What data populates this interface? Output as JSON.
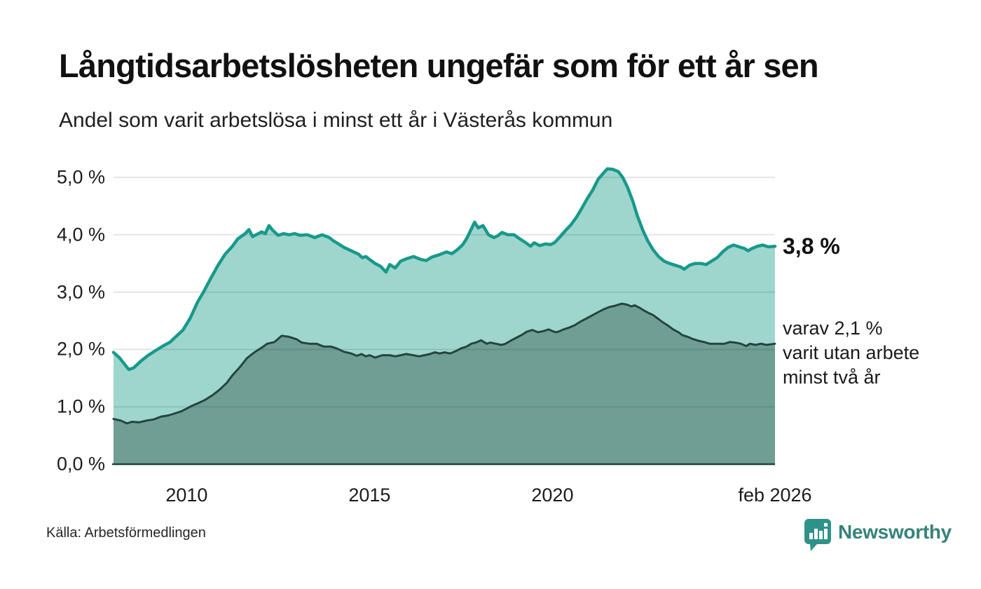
{
  "title": "Långtidsarbetslösheten ungefär som för ett år sen",
  "subtitle": "Andel som varit arbetslösa i minst ett år i Västerås kommun",
  "source": "Källa: Arbetsförmedlingen",
  "brand": {
    "name": "Newsworthy",
    "icon": "newsworthy-speech-bubble-bar-chart",
    "color": "#2f9289",
    "text_color": "#35837b"
  },
  "annotations": {
    "latest_total": "3,8 %",
    "latest_subset_lines": [
      "varav 2,1 %",
      "varit utan arbete",
      "minst två år"
    ]
  },
  "chart_data": {
    "type": "area",
    "title": "Långtidsarbetslösheten ungefär som för ett år sen",
    "subtitle": "Andel som varit arbetslösa i minst ett år i Västerås kommun",
    "xlabel": "",
    "ylabel": "",
    "unit": "%",
    "grid": true,
    "legend_position": "right-inline-annotations",
    "x_range": [
      2008.0,
      2026.083
    ],
    "ylim": [
      0,
      5.0
    ],
    "colors": {
      "gridline": "rgba(20,20,20,0.11)",
      "axis_line": "#24423b",
      "series1_line": "#18998b",
      "series1_fill": "#9ed6cd",
      "series2_line": "#24453e",
      "series2_fill": "#6f9e95",
      "background": "#ffffff"
    },
    "y_axis": {
      "ticks": [
        {
          "label": "5,0 %",
          "value": 5.0
        },
        {
          "label": "4,0 %",
          "value": 4.0
        },
        {
          "label": "3,0 %",
          "value": 3.0
        },
        {
          "label": "2,0 %",
          "value": 2.0
        },
        {
          "label": "1,0 %",
          "value": 1.0
        },
        {
          "label": "0,0 %",
          "value": 0.0
        }
      ]
    },
    "x_axis": {
      "ticks": [
        {
          "label": "2010",
          "year": 2010
        },
        {
          "label": "2015",
          "year": 2015
        },
        {
          "label": "2020",
          "year": 2020
        },
        {
          "label": "feb 2026",
          "year": 2026.083
        }
      ]
    },
    "series": [
      {
        "name": "Andel arbetslösa minst ett år",
        "latest_value_label": "3,8 %",
        "line_color": "#18998b",
        "fill_color": "#9ed6cd",
        "line_width": 4.5,
        "points": [
          [
            2008.0,
            1.95
          ],
          [
            2008.17,
            1.85
          ],
          [
            2008.33,
            1.72
          ],
          [
            2008.42,
            1.65
          ],
          [
            2008.55,
            1.68
          ],
          [
            2008.75,
            1.8
          ],
          [
            2008.95,
            1.9
          ],
          [
            2009.15,
            1.98
          ],
          [
            2009.35,
            2.06
          ],
          [
            2009.55,
            2.13
          ],
          [
            2009.7,
            2.22
          ],
          [
            2009.9,
            2.34
          ],
          [
            2010.1,
            2.55
          ],
          [
            2010.3,
            2.83
          ],
          [
            2010.45,
            2.99
          ],
          [
            2010.65,
            3.23
          ],
          [
            2010.85,
            3.46
          ],
          [
            2011.05,
            3.66
          ],
          [
            2011.25,
            3.8
          ],
          [
            2011.4,
            3.93
          ],
          [
            2011.6,
            4.02
          ],
          [
            2011.7,
            4.09
          ],
          [
            2011.8,
            3.97
          ],
          [
            2011.9,
            4.0
          ],
          [
            2012.05,
            4.05
          ],
          [
            2012.15,
            4.02
          ],
          [
            2012.25,
            4.16
          ],
          [
            2012.35,
            4.08
          ],
          [
            2012.5,
            3.99
          ],
          [
            2012.65,
            4.02
          ],
          [
            2012.8,
            4.0
          ],
          [
            2012.95,
            4.02
          ],
          [
            2013.1,
            3.99
          ],
          [
            2013.3,
            4.0
          ],
          [
            2013.5,
            3.95
          ],
          [
            2013.7,
            4.0
          ],
          [
            2013.9,
            3.95
          ],
          [
            2014.0,
            3.9
          ],
          [
            2014.15,
            3.84
          ],
          [
            2014.3,
            3.78
          ],
          [
            2014.5,
            3.72
          ],
          [
            2014.7,
            3.66
          ],
          [
            2014.8,
            3.6
          ],
          [
            2014.9,
            3.62
          ],
          [
            2015.0,
            3.57
          ],
          [
            2015.15,
            3.5
          ],
          [
            2015.3,
            3.45
          ],
          [
            2015.45,
            3.35
          ],
          [
            2015.55,
            3.48
          ],
          [
            2015.7,
            3.42
          ],
          [
            2015.85,
            3.54
          ],
          [
            2016.0,
            3.58
          ],
          [
            2016.2,
            3.62
          ],
          [
            2016.4,
            3.57
          ],
          [
            2016.55,
            3.55
          ],
          [
            2016.7,
            3.61
          ],
          [
            2016.9,
            3.65
          ],
          [
            2017.1,
            3.7
          ],
          [
            2017.25,
            3.67
          ],
          [
            2017.4,
            3.74
          ],
          [
            2017.55,
            3.83
          ],
          [
            2017.65,
            3.93
          ],
          [
            2017.78,
            4.1
          ],
          [
            2017.87,
            4.22
          ],
          [
            2017.97,
            4.12
          ],
          [
            2018.1,
            4.16
          ],
          [
            2018.25,
            4.0
          ],
          [
            2018.4,
            3.95
          ],
          [
            2018.5,
            3.98
          ],
          [
            2018.62,
            4.04
          ],
          [
            2018.78,
            4.0
          ],
          [
            2018.95,
            4.0
          ],
          [
            2019.1,
            3.93
          ],
          [
            2019.25,
            3.87
          ],
          [
            2019.4,
            3.8
          ],
          [
            2019.5,
            3.86
          ],
          [
            2019.65,
            3.81
          ],
          [
            2019.8,
            3.84
          ],
          [
            2019.95,
            3.83
          ],
          [
            2020.05,
            3.86
          ],
          [
            2020.2,
            3.96
          ],
          [
            2020.35,
            4.07
          ],
          [
            2020.5,
            4.17
          ],
          [
            2020.65,
            4.3
          ],
          [
            2020.8,
            4.46
          ],
          [
            2020.95,
            4.63
          ],
          [
            2021.1,
            4.78
          ],
          [
            2021.25,
            4.97
          ],
          [
            2021.4,
            5.08
          ],
          [
            2021.5,
            5.15
          ],
          [
            2021.65,
            5.14
          ],
          [
            2021.8,
            5.1
          ],
          [
            2021.92,
            5.0
          ],
          [
            2022.05,
            4.83
          ],
          [
            2022.2,
            4.58
          ],
          [
            2022.32,
            4.33
          ],
          [
            2022.47,
            4.08
          ],
          [
            2022.6,
            3.9
          ],
          [
            2022.75,
            3.74
          ],
          [
            2022.9,
            3.62
          ],
          [
            2023.05,
            3.54
          ],
          [
            2023.2,
            3.5
          ],
          [
            2023.35,
            3.47
          ],
          [
            2023.5,
            3.44
          ],
          [
            2023.6,
            3.4
          ],
          [
            2023.75,
            3.47
          ],
          [
            2023.9,
            3.5
          ],
          [
            2024.05,
            3.5
          ],
          [
            2024.2,
            3.48
          ],
          [
            2024.35,
            3.54
          ],
          [
            2024.5,
            3.6
          ],
          [
            2024.65,
            3.7
          ],
          [
            2024.8,
            3.78
          ],
          [
            2024.95,
            3.82
          ],
          [
            2025.1,
            3.79
          ],
          [
            2025.25,
            3.76
          ],
          [
            2025.35,
            3.72
          ],
          [
            2025.45,
            3.76
          ],
          [
            2025.6,
            3.8
          ],
          [
            2025.75,
            3.82
          ],
          [
            2025.9,
            3.79
          ],
          [
            2026.083,
            3.8
          ]
        ]
      },
      {
        "name": "Andel utan arbete minst två år",
        "latest_value_label": "2,1 %",
        "line_color": "#24453e",
        "fill_color": "#6f9e95",
        "line_width": 3,
        "points": [
          [
            2008.0,
            0.79
          ],
          [
            2008.2,
            0.76
          ],
          [
            2008.37,
            0.71
          ],
          [
            2008.5,
            0.74
          ],
          [
            2008.7,
            0.73
          ],
          [
            2008.9,
            0.76
          ],
          [
            2009.1,
            0.78
          ],
          [
            2009.3,
            0.83
          ],
          [
            2009.5,
            0.85
          ],
          [
            2009.65,
            0.88
          ],
          [
            2009.85,
            0.92
          ],
          [
            2010.0,
            0.97
          ],
          [
            2010.15,
            1.02
          ],
          [
            2010.3,
            1.06
          ],
          [
            2010.5,
            1.12
          ],
          [
            2010.7,
            1.2
          ],
          [
            2010.9,
            1.3
          ],
          [
            2011.1,
            1.42
          ],
          [
            2011.25,
            1.55
          ],
          [
            2011.45,
            1.69
          ],
          [
            2011.65,
            1.85
          ],
          [
            2011.85,
            1.95
          ],
          [
            2012.05,
            2.03
          ],
          [
            2012.2,
            2.1
          ],
          [
            2012.4,
            2.13
          ],
          [
            2012.6,
            2.24
          ],
          [
            2012.8,
            2.22
          ],
          [
            2013.0,
            2.18
          ],
          [
            2013.15,
            2.12
          ],
          [
            2013.35,
            2.1
          ],
          [
            2013.55,
            2.1
          ],
          [
            2013.75,
            2.05
          ],
          [
            2013.95,
            2.05
          ],
          [
            2014.1,
            2.02
          ],
          [
            2014.3,
            1.96
          ],
          [
            2014.5,
            1.93
          ],
          [
            2014.65,
            1.89
          ],
          [
            2014.78,
            1.92
          ],
          [
            2014.9,
            1.88
          ],
          [
            2015.0,
            1.9
          ],
          [
            2015.15,
            1.86
          ],
          [
            2015.35,
            1.9
          ],
          [
            2015.55,
            1.9
          ],
          [
            2015.7,
            1.88
          ],
          [
            2015.85,
            1.9
          ],
          [
            2016.0,
            1.92
          ],
          [
            2016.2,
            1.9
          ],
          [
            2016.35,
            1.88
          ],
          [
            2016.5,
            1.9
          ],
          [
            2016.65,
            1.92
          ],
          [
            2016.78,
            1.95
          ],
          [
            2016.92,
            1.93
          ],
          [
            2017.05,
            1.95
          ],
          [
            2017.2,
            1.93
          ],
          [
            2017.35,
            1.97
          ],
          [
            2017.5,
            2.02
          ],
          [
            2017.65,
            2.05
          ],
          [
            2017.78,
            2.1
          ],
          [
            2017.9,
            2.12
          ],
          [
            2018.05,
            2.16
          ],
          [
            2018.2,
            2.1
          ],
          [
            2018.3,
            2.12
          ],
          [
            2018.45,
            2.1
          ],
          [
            2018.6,
            2.08
          ],
          [
            2018.72,
            2.1
          ],
          [
            2018.85,
            2.15
          ],
          [
            2019.0,
            2.2
          ],
          [
            2019.15,
            2.25
          ],
          [
            2019.3,
            2.31
          ],
          [
            2019.45,
            2.34
          ],
          [
            2019.6,
            2.3
          ],
          [
            2019.75,
            2.32
          ],
          [
            2019.9,
            2.35
          ],
          [
            2020.0,
            2.32
          ],
          [
            2020.1,
            2.3
          ],
          [
            2020.2,
            2.32
          ],
          [
            2020.3,
            2.35
          ],
          [
            2020.45,
            2.38
          ],
          [
            2020.6,
            2.42
          ],
          [
            2020.75,
            2.48
          ],
          [
            2020.9,
            2.53
          ],
          [
            2021.1,
            2.6
          ],
          [
            2021.25,
            2.65
          ],
          [
            2021.4,
            2.7
          ],
          [
            2021.55,
            2.74
          ],
          [
            2021.7,
            2.76
          ],
          [
            2021.8,
            2.78
          ],
          [
            2021.9,
            2.8
          ],
          [
            2022.05,
            2.78
          ],
          [
            2022.15,
            2.75
          ],
          [
            2022.25,
            2.77
          ],
          [
            2022.4,
            2.72
          ],
          [
            2022.5,
            2.68
          ],
          [
            2022.65,
            2.63
          ],
          [
            2022.75,
            2.6
          ],
          [
            2022.9,
            2.53
          ],
          [
            2023.0,
            2.48
          ],
          [
            2023.15,
            2.42
          ],
          [
            2023.3,
            2.35
          ],
          [
            2023.45,
            2.3
          ],
          [
            2023.55,
            2.25
          ],
          [
            2023.7,
            2.22
          ],
          [
            2023.85,
            2.18
          ],
          [
            2024.0,
            2.15
          ],
          [
            2024.15,
            2.13
          ],
          [
            2024.3,
            2.1
          ],
          [
            2024.5,
            2.1
          ],
          [
            2024.7,
            2.1
          ],
          [
            2024.85,
            2.13
          ],
          [
            2025.0,
            2.12
          ],
          [
            2025.15,
            2.1
          ],
          [
            2025.3,
            2.06
          ],
          [
            2025.4,
            2.1
          ],
          [
            2025.55,
            2.08
          ],
          [
            2025.7,
            2.1
          ],
          [
            2025.85,
            2.08
          ],
          [
            2026.083,
            2.1
          ]
        ]
      }
    ]
  }
}
